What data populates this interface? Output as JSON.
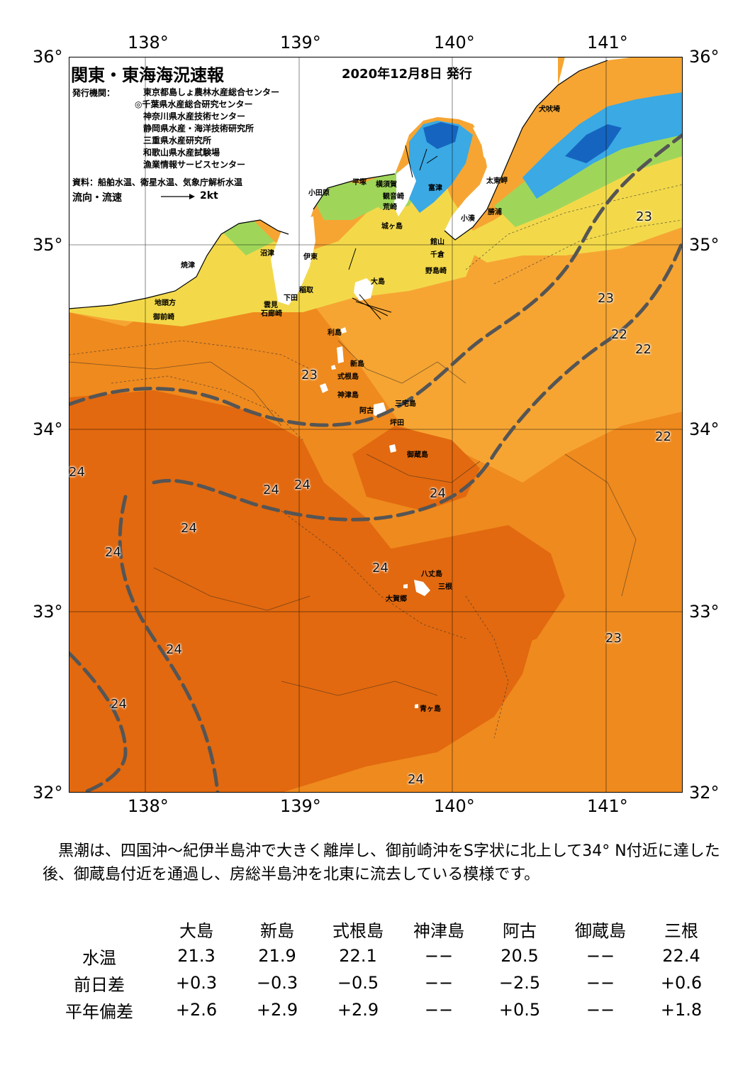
{
  "header": {
    "title": "関東・東海海況速報",
    "date": "2020年12月8日 発行",
    "org_label": "発行機関：",
    "organizations": [
      "東京都島しょ農林水産総合センター",
      "◎千葉県水産総合研究センター",
      "神奈川県水産技術センター",
      "静岡県水産・海洋技術研究所",
      "三重県水産研究所",
      "和歌山県水産試験場",
      "漁業情報サービスセンター"
    ],
    "sources": "資料：船舶水温、衛星水温、気象庁解析水温",
    "flow_legend": "流向・流速",
    "flow_unit": "2kt"
  },
  "axes": {
    "lon_labels": [
      "138°",
      "139°",
      "140°",
      "141°"
    ],
    "lat_labels": [
      "36°",
      "35°",
      "34°",
      "33°",
      "32°"
    ]
  },
  "map": {
    "colors": {
      "sea_dark": "#e2690f",
      "sea_mid": "#ef8a1e",
      "sea_light": "#f6a533",
      "coast_yellow": "#f3d94a",
      "coast_green": "#9fd65a",
      "coast_blue": "#3aa9e4",
      "deep_blue": "#1565c0",
      "land": "#ffffff",
      "kuroshio": "#555555"
    },
    "place_names": {
      "inubo": "犬吠埼",
      "taito": "太東岬",
      "katsuura": "勝浦",
      "kominato": "小湊",
      "futtsu": "富津",
      "hiratsuka": "平塚",
      "yokosuka": "横須賀",
      "kannonzaki": "観音崎",
      "arasaki": "荒崎",
      "odawara": "小田原",
      "jogashima": "城ヶ島",
      "tateyama": "館山",
      "chikura": "千倉",
      "nojimazaki": "野島崎",
      "numazu": "沼津",
      "ito": "伊東",
      "yaizu": "焼津",
      "oshima": "大島",
      "inatori": "稲取",
      "shimoda": "下田",
      "kumomi": "雲見",
      "irozaki": "石廊崎",
      "jitogata": "地頭方",
      "omaezaki": "御前崎",
      "toshima": "利島",
      "niijima": "新島",
      "shikinejima": "式根島",
      "kozushima": "神津島",
      "miyakejima": "三宅島",
      "ako": "阿古",
      "tsubota": "坪田",
      "mikurajima": "御蔵島",
      "hachijojima": "八丈島",
      "mitsune": "三根",
      "okago": "大賀郷",
      "aogashima": "青ヶ島"
    },
    "temperature_labels": [
      "23",
      "23",
      "22",
      "22",
      "22",
      "23",
      "24",
      "24",
      "24",
      "24",
      "24",
      "24",
      "24",
      "24",
      "24",
      "23",
      "24"
    ]
  },
  "summary": {
    "text": "黒潮は、四国沖～紀伊半島沖で大きく離岸し、御前崎沖をS字状に北上して34° N付近に達した後、御蔵島付近を通過し、房総半島沖を北東に流去している模様です。"
  },
  "stats": {
    "columns": [
      "大島",
      "新島",
      "式根島",
      "神津島",
      "阿古",
      "御蔵島",
      "三根"
    ],
    "rows": [
      {
        "label": "水温",
        "values": [
          "21.3",
          "21.9",
          "22.1",
          "−−",
          "20.5",
          "−−",
          "22.4"
        ]
      },
      {
        "label": "前日差",
        "values": [
          "+0.3",
          "−0.3",
          "−0.5",
          "−−",
          "−2.5",
          "−−",
          "+0.6"
        ]
      },
      {
        "label": "平年偏差",
        "values": [
          "+2.6",
          "+2.9",
          "+2.9",
          "−−",
          "+0.5",
          "−−",
          "+1.8"
        ]
      }
    ]
  }
}
